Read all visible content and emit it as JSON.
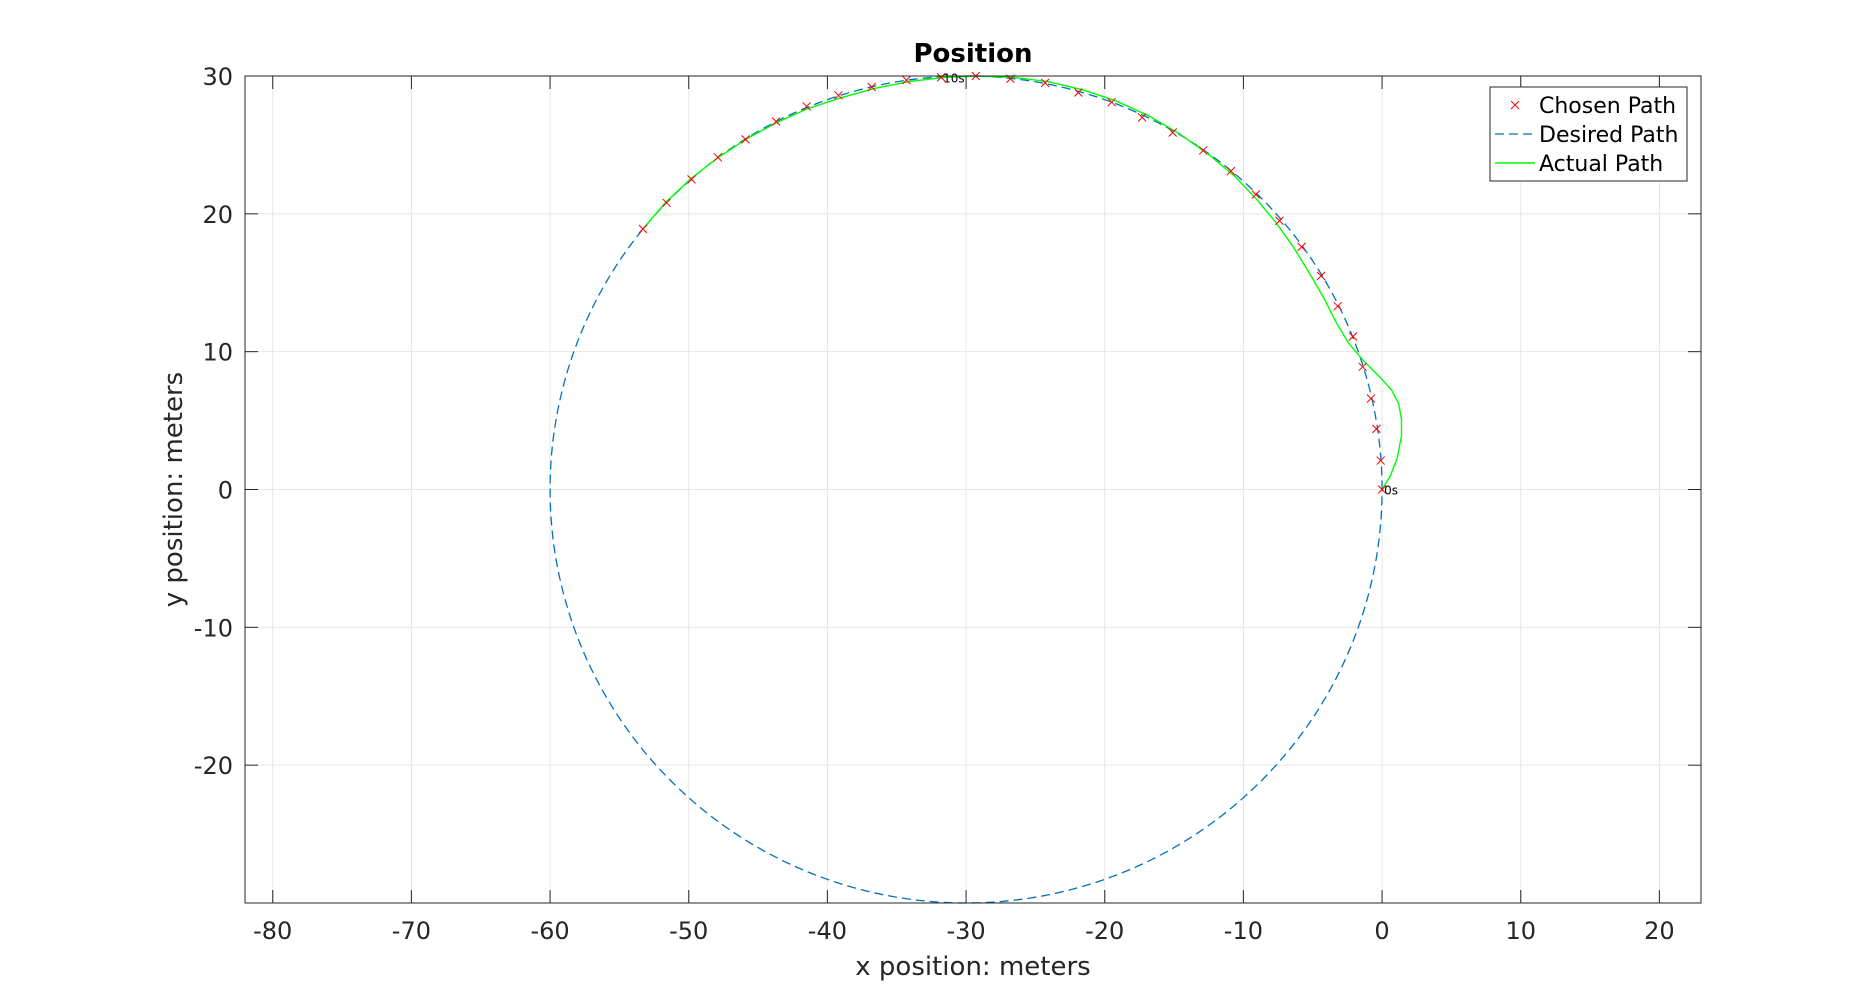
{
  "chart_data": {
    "type": "line",
    "title": "Position",
    "xlabel": "x position: meters",
    "ylabel": "y position: meters",
    "xlim": [
      -82,
      23
    ],
    "ylim": [
      -30,
      30
    ],
    "x_ticks": [
      -80,
      -70,
      -60,
      -50,
      -40,
      -30,
      -20,
      -10,
      0,
      10,
      20
    ],
    "y_ticks": [
      -20,
      -10,
      0,
      10,
      20,
      30
    ],
    "grid": true,
    "legend_position": "top-right",
    "colors": {
      "chosen": "#ff0000",
      "desired": "#0072bd",
      "actual": "#00ff00",
      "axes": "#262626",
      "grid": "#e6e6e6"
    },
    "series": [
      {
        "name": "Chosen Path",
        "style": "markers-x",
        "x": [
          0.0,
          -0.1,
          -0.4,
          -0.8,
          -1.4,
          -2.1,
          -3.2,
          -4.4,
          -5.8,
          -7.4,
          -9.1,
          -10.9,
          -12.9,
          -15.1,
          -17.3,
          -19.5,
          -21.9,
          -24.3,
          -26.8,
          -29.3,
          -31.8,
          -34.3,
          -36.8,
          -39.2,
          -41.5,
          -43.7,
          -45.9,
          -47.9,
          -49.8,
          -51.6,
          -53.3
        ],
        "y": [
          0.0,
          2.1,
          4.4,
          6.6,
          8.9,
          11.1,
          13.3,
          15.5,
          17.6,
          19.5,
          21.4,
          23.1,
          24.6,
          25.9,
          27.0,
          28.1,
          28.8,
          29.5,
          29.8,
          30.0,
          29.9,
          29.7,
          29.2,
          28.6,
          27.8,
          26.7,
          25.4,
          24.1,
          22.5,
          20.8,
          18.9
        ]
      },
      {
        "name": "Desired Path",
        "style": "dashed",
        "shape": "circle",
        "center": [
          -30,
          0
        ],
        "radius": 30
      },
      {
        "name": "Actual Path",
        "style": "solid",
        "x": [
          0.0,
          0.6,
          1.1,
          1.4,
          1.4,
          1.2,
          0.7,
          -0.2,
          -1.3,
          -2.4,
          -3.3,
          -4.2,
          -5.3,
          -6.4,
          -7.6,
          -9.0,
          -10.6,
          -12.5,
          -14.6,
          -16.8,
          -19.2,
          -21.6,
          -24.1,
          -26.6,
          -29.1,
          -31.6,
          -34.1,
          -36.6,
          -39.1,
          -41.5,
          -43.7,
          -45.9,
          -48.0,
          -49.9,
          -51.7,
          -53.3
        ],
        "y": [
          0.0,
          1.0,
          2.3,
          3.9,
          5.1,
          6.2,
          7.2,
          8.2,
          9.3,
          10.6,
          12.1,
          13.9,
          15.8,
          17.6,
          19.3,
          21.0,
          22.7,
          24.3,
          25.8,
          27.1,
          28.2,
          29.0,
          29.6,
          29.9,
          30.0,
          29.9,
          29.6,
          29.1,
          28.4,
          27.6,
          26.6,
          25.4,
          24.0,
          22.5,
          20.8,
          18.9
        ]
      }
    ],
    "annotations": [
      {
        "text": "0s",
        "x": 0.0,
        "y": 0.0
      },
      {
        "text": "10s",
        "x": -31.8,
        "y": 29.9
      }
    ]
  }
}
